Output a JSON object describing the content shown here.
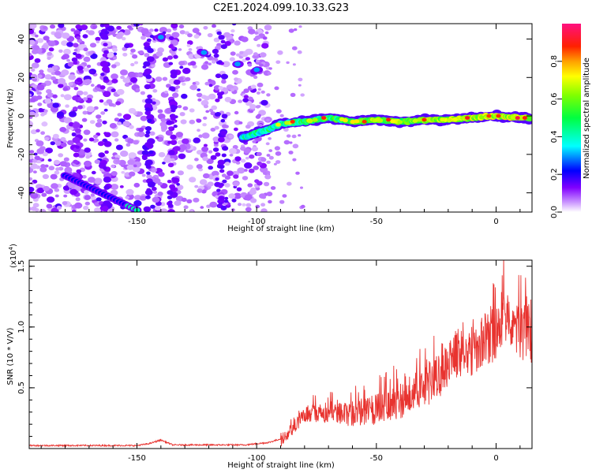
{
  "title": "C2E1.2024.099.10.33.G23",
  "chart_data": [
    {
      "type": "heatmap",
      "xlabel": "Height of straight line (km)",
      "ylabel": "Frequency (Hz)",
      "xlim": [
        -195,
        15
      ],
      "ylim": [
        -50,
        48
      ],
      "x_ticks": [
        -150,
        -100,
        -50,
        0
      ],
      "y_ticks": [
        -40,
        -20,
        0,
        20,
        40
      ],
      "colorbar": {
        "label": "Normalized spectral amplitude",
        "range": [
          0.0,
          1.0
        ],
        "ticks": [
          "0.0",
          "0.2",
          "0.4",
          "0.6",
          "0.8"
        ]
      },
      "features": {
        "main_trace_freq_hz": [
          [
            -105,
            -11
          ],
          [
            -100,
            -9
          ],
          [
            -95,
            -7
          ],
          [
            -90,
            -4
          ],
          [
            -80,
            -3
          ],
          [
            -70,
            -1
          ],
          [
            -60,
            -3
          ],
          [
            -50,
            -2
          ],
          [
            -40,
            -3
          ],
          [
            -30,
            -2
          ],
          [
            -20,
            -2
          ],
          [
            -10,
            -1
          ],
          [
            0,
            0
          ],
          [
            10,
            -1
          ],
          [
            14,
            -1
          ]
        ],
        "descending_line_freq_hz": [
          [
            -180,
            -31
          ],
          [
            -150,
            -49
          ]
        ],
        "upper_blobs_freq_hz": [
          [
            -140,
            41
          ],
          [
            -122,
            33
          ],
          [
            -108,
            27
          ],
          [
            -100,
            24
          ]
        ]
      }
    },
    {
      "type": "line",
      "xlabel": "Height of straight line (km)",
      "ylabel": "SNR (10 * V/V)",
      "multiplier": "(x10",
      "multiplier_exp": "4",
      "xlim": [
        -195,
        15
      ],
      "ylim": [
        0,
        1.55
      ],
      "x_ticks": [
        -150,
        -100,
        -50,
        0
      ],
      "y_ticks": [
        "0.5",
        "1.0",
        "1.5"
      ],
      "color": "#e8332f",
      "envelope_x10e4": [
        [
          -195,
          0.025
        ],
        [
          -150,
          0.025
        ],
        [
          -145,
          0.04
        ],
        [
          -140,
          0.07
        ],
        [
          -135,
          0.03
        ],
        [
          -105,
          0.03
        ],
        [
          -95,
          0.05
        ],
        [
          -90,
          0.08
        ],
        [
          -85,
          0.2
        ],
        [
          -80,
          0.33
        ],
        [
          -70,
          0.35
        ],
        [
          -60,
          0.36
        ],
        [
          -50,
          0.4
        ],
        [
          -45,
          0.47
        ],
        [
          -40,
          0.48
        ],
        [
          -35,
          0.56
        ],
        [
          -30,
          0.62
        ],
        [
          -25,
          0.7
        ],
        [
          -20,
          0.82
        ],
        [
          -15,
          0.92
        ],
        [
          -10,
          0.95
        ],
        [
          -5,
          1.05
        ],
        [
          0,
          1.12
        ],
        [
          5,
          1.28
        ],
        [
          10,
          1.14
        ],
        [
          15,
          1.1
        ]
      ]
    }
  ]
}
